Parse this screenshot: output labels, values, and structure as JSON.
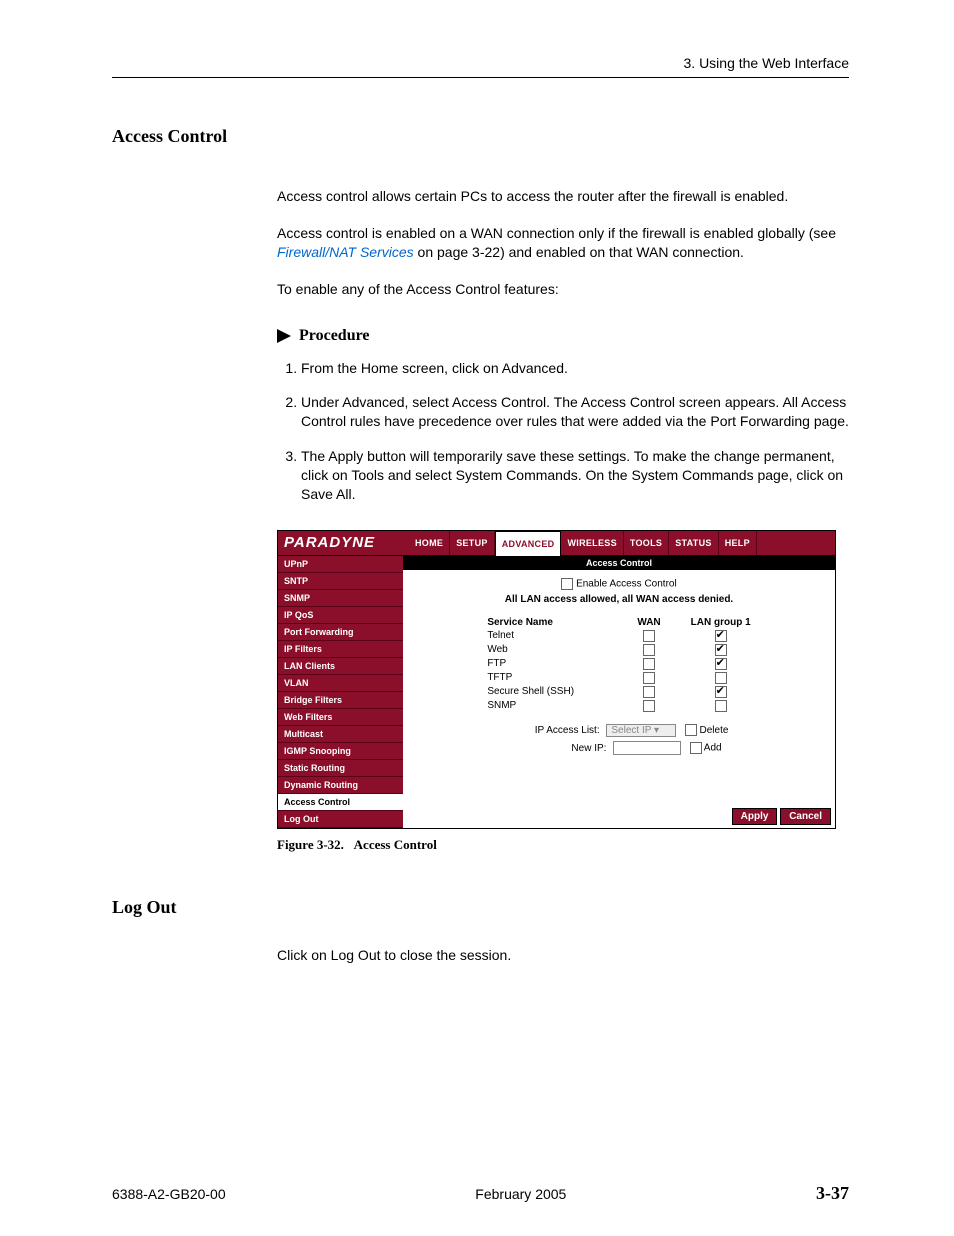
{
  "header": {
    "chapter": "3. Using the Web Interface"
  },
  "section1": {
    "heading": "Access Control",
    "p1": "Access control allows certain PCs to access the router after the firewall is enabled.",
    "p2a": "Access control is enabled on a WAN connection only if the firewall is enabled globally (see ",
    "p2_link": "Firewall/NAT Services",
    "p2b": " on page 3-22) and enabled on that WAN connection.",
    "p3": "To enable any of the Access Control features:",
    "procedure_label": "Procedure",
    "steps": [
      "From the Home screen, click on Advanced.",
      "Under Advanced, select Access Control. The Access Control screen appears. All Access Control rules have precedence over rules that were added via the Port Forwarding page.",
      "The Apply button will temporarily save these settings. To make the change permanent, click on Tools and select System Commands. On the System Commands page, click on Save All."
    ]
  },
  "ui": {
    "logo": "PARADYNE",
    "tabs": [
      "HOME",
      "SETUP",
      "ADVANCED",
      "WIRELESS",
      "TOOLS",
      "STATUS",
      "HELP"
    ],
    "active_tab": 2,
    "sidebar": [
      "UPnP",
      "SNTP",
      "SNMP",
      "IP QoS",
      "Port Forwarding",
      "IP Filters",
      "LAN Clients",
      "VLAN",
      "Bridge Filters",
      "Web Filters",
      "Multicast",
      "IGMP Snooping",
      "Static Routing",
      "Dynamic Routing",
      "Access Control",
      "Log Out"
    ],
    "sidebar_active": 14,
    "title": "Access Control",
    "enable_label": "Enable Access Control",
    "denied_text": "All LAN access allowed, all WAN access denied.",
    "columns": {
      "c1": "Service Name",
      "c2": "WAN",
      "c3": "LAN group 1"
    },
    "services": [
      {
        "name": "Telnet",
        "wan": false,
        "lan": true
      },
      {
        "name": "Web",
        "wan": false,
        "lan": true
      },
      {
        "name": "FTP",
        "wan": false,
        "lan": true
      },
      {
        "name": "TFTP",
        "wan": false,
        "lan": false
      },
      {
        "name": "Secure Shell (SSH)",
        "wan": false,
        "lan": true
      },
      {
        "name": "SNMP",
        "wan": false,
        "lan": false
      }
    ],
    "ip_access_list_label": "IP Access List:",
    "ip_select_placeholder": "Select IP",
    "delete_label": "Delete",
    "new_ip_label": "New IP:",
    "add_label": "Add",
    "apply": "Apply",
    "cancel": "Cancel"
  },
  "caption": {
    "num": "Figure 3-32.",
    "text": "Access Control"
  },
  "section2": {
    "heading": "Log Out",
    "p1": "Click on Log Out to close the session."
  },
  "footer": {
    "left": "6388-A2-GB20-00",
    "center": "February 2005",
    "right": "3-37"
  },
  "colors": {
    "brand": "#8b0f2b",
    "link": "#0066cc",
    "text": "#000000",
    "bg": "#ffffff"
  }
}
